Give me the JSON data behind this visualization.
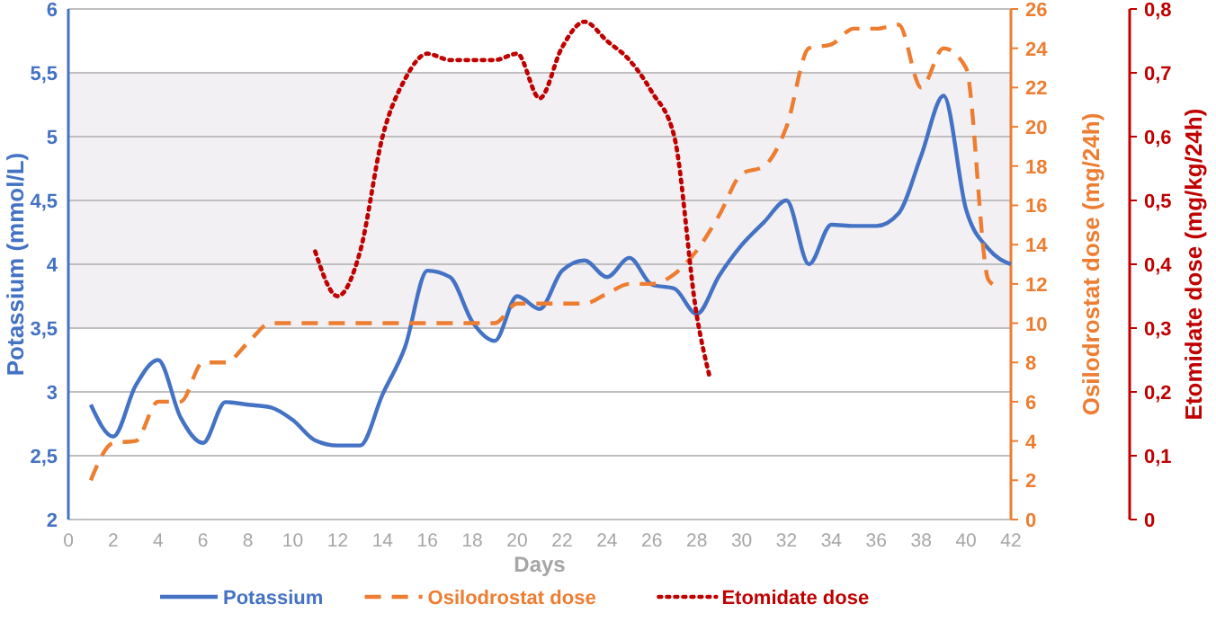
{
  "chart_data": {
    "type": "line",
    "xlabel": "Days",
    "ylabel": "Potassium (mmol/L)",
    "y2label": "Osilodrostat dose (mg/24h)",
    "y3label": "Etomidate dose  (mg/kg/24h)",
    "xlim": [
      0,
      42
    ],
    "xticks": [
      0,
      2,
      4,
      6,
      8,
      10,
      12,
      14,
      16,
      18,
      20,
      22,
      24,
      26,
      28,
      30,
      32,
      34,
      36,
      38,
      40,
      42
    ],
    "ylim": [
      2,
      6
    ],
    "yticks": [
      2,
      {
        "value": 2.5,
        "label": "2,5"
      },
      3,
      {
        "value": 3.5,
        "label": "3,5"
      },
      4,
      {
        "value": 4.5,
        "label": "4,5"
      },
      5,
      {
        "value": 5.5,
        "label": "5,5"
      },
      6
    ],
    "y2lim": [
      0,
      26
    ],
    "y2ticks": [
      0,
      2,
      4,
      6,
      8,
      10,
      12,
      14,
      16,
      18,
      20,
      22,
      24,
      26
    ],
    "y3lim": [
      0,
      0.8
    ],
    "y3ticks": [
      0,
      {
        "value": 0.1,
        "label": "0,1"
      },
      {
        "value": 0.2,
        "label": "0,2"
      },
      {
        "value": 0.3,
        "label": "0,3"
      },
      {
        "value": 0.4,
        "label": "0,4"
      },
      {
        "value": 0.5,
        "label": "0,5"
      },
      {
        "value": 0.6,
        "label": "0,6"
      },
      {
        "value": 0.7,
        "label": "0,7"
      },
      {
        "value": 0.8,
        "label": "0,8"
      }
    ],
    "grid": "y",
    "legend": "bottom",
    "bands": [
      {
        "axis": "y",
        "from": 3.5,
        "to": 5.5,
        "color": "#f3f0f3"
      }
    ],
    "series": [
      {
        "name": "Potassium",
        "color": "#4472c4",
        "line_style": "solid",
        "axis": "y",
        "x": [
          1,
          2,
          3,
          4,
          5,
          6,
          7,
          8,
          9,
          10,
          11,
          12,
          13,
          14,
          15,
          16,
          17,
          18,
          19,
          20,
          21,
          22,
          23,
          24,
          25,
          26,
          27,
          28,
          29,
          30,
          31,
          32,
          33,
          34,
          35,
          36,
          37,
          38,
          39,
          40,
          41,
          42
        ],
        "values": [
          2.9,
          2.65,
          3.05,
          3.25,
          2.8,
          2.6,
          2.92,
          2.9,
          2.88,
          2.78,
          2.62,
          2.58,
          2.58,
          2.98,
          3.35,
          3.95,
          3.9,
          3.55,
          3.4,
          3.75,
          3.65,
          3.95,
          4.03,
          3.9,
          4.05,
          3.84,
          3.81,
          3.61,
          3.91,
          4.15,
          4.33,
          4.5,
          4.0,
          4.31,
          4.3,
          4.3,
          4.4,
          4.85,
          5.32,
          4.43,
          4.12,
          4.0
        ]
      },
      {
        "name": "Osilodrostat dose",
        "color": "#ed7d31",
        "line_style": "dashed",
        "axis": "y2",
        "x": [
          1,
          2,
          3,
          4,
          5,
          6,
          7,
          8,
          9,
          10,
          11,
          12,
          13,
          14,
          15,
          16,
          17,
          18,
          19,
          20,
          21,
          22,
          23,
          24,
          25,
          26,
          27,
          28,
          29,
          30,
          31,
          32,
          33,
          34,
          35,
          36,
          37,
          38,
          39,
          40,
          41,
          41.5
        ],
        "values": [
          2,
          3.9,
          4,
          6,
          6,
          8,
          8,
          9,
          10,
          10,
          10,
          10,
          10,
          10,
          10,
          10,
          10,
          10,
          10,
          11,
          11,
          11,
          11,
          11.5,
          12,
          12,
          12.5,
          13.7,
          15.5,
          17.6,
          18,
          20,
          24,
          24.2,
          25,
          25,
          25.2,
          22,
          24,
          23,
          12.2,
          11.8
        ]
      },
      {
        "name": "Etomidate dose",
        "color": "#c00000",
        "line_style": "dotted",
        "axis": "y3",
        "x": [
          11,
          12,
          13,
          14,
          15,
          16,
          17,
          18,
          19,
          20,
          21,
          22,
          23,
          24,
          25,
          26,
          27,
          28,
          28.6
        ],
        "values": [
          0.42,
          0.35,
          0.42,
          0.6,
          0.69,
          0.73,
          0.72,
          0.72,
          0.72,
          0.73,
          0.66,
          0.74,
          0.78,
          0.75,
          0.72,
          0.67,
          0.6,
          0.32,
          0.22
        ]
      }
    ]
  }
}
